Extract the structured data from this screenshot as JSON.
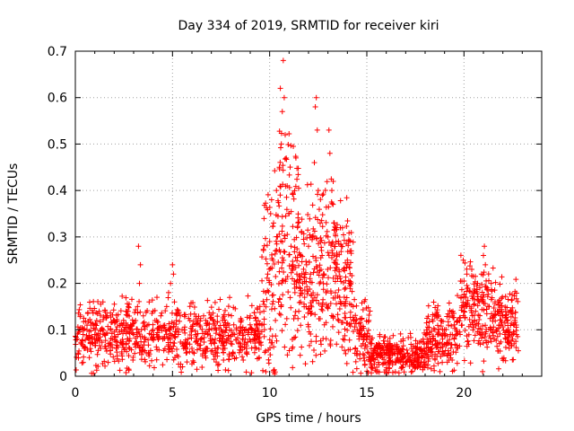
{
  "chart_data": {
    "type": "scatter",
    "title": "Day 334 of 2019, SRMTID for receiver kiri",
    "xlabel": "GPS time / hours",
    "ylabel": "SRMTID / TECUs",
    "xlim": [
      0,
      24
    ],
    "ylim": [
      0,
      0.7
    ],
    "x_ticks": [
      0,
      5,
      10,
      15,
      20
    ],
    "x_tick_labels": [
      "0",
      "5",
      "10",
      "15",
      "20"
    ],
    "y_ticks": [
      0,
      0.1,
      0.2,
      0.3,
      0.4,
      0.5,
      0.6,
      0.7
    ],
    "y_tick_labels": [
      "0",
      "0.1",
      "0.2",
      "0.3",
      "0.4",
      "0.5",
      "0.6",
      "0.7"
    ],
    "grid": true,
    "marker": "+",
    "color": "#ff0000",
    "series": [
      {
        "name": "SRMTID",
        "points": [
          [
            0.1,
            0.08
          ],
          [
            0.2,
            0.1
          ],
          [
            0.3,
            0.07
          ],
          [
            0.4,
            0.09
          ],
          [
            0.5,
            0.06
          ],
          [
            0.6,
            0.1
          ],
          [
            0.7,
            0.08
          ],
          [
            0.8,
            0.11
          ],
          [
            0.9,
            0.07
          ],
          [
            1.0,
            0.09
          ],
          [
            1.1,
            0.12
          ],
          [
            1.2,
            0.08
          ],
          [
            1.3,
            0.06
          ],
          [
            1.4,
            0.1
          ],
          [
            1.5,
            0.09
          ],
          [
            1.6,
            0.13
          ],
          [
            1.7,
            0.07
          ],
          [
            1.8,
            0.1
          ],
          [
            1.9,
            0.08
          ],
          [
            2.0,
            0.12
          ],
          [
            2.1,
            0.06
          ],
          [
            2.2,
            0.09
          ],
          [
            2.3,
            0.11
          ],
          [
            2.4,
            0.07
          ],
          [
            2.5,
            0.1
          ],
          [
            2.6,
            0.14
          ],
          [
            2.7,
            0.08
          ],
          [
            2.8,
            0.06
          ],
          [
            2.9,
            0.1
          ],
          [
            3.0,
            0.09
          ],
          [
            3.1,
            0.12
          ],
          [
            3.2,
            0.15
          ],
          [
            3.25,
            0.28
          ],
          [
            3.3,
            0.2
          ],
          [
            3.35,
            0.24
          ],
          [
            3.4,
            0.1
          ],
          [
            3.5,
            0.13
          ],
          [
            3.6,
            0.08
          ],
          [
            3.7,
            0.11
          ],
          [
            3.8,
            0.16
          ],
          [
            3.9,
            0.09
          ],
          [
            4.0,
            0.14
          ],
          [
            4.1,
            0.12
          ],
          [
            4.2,
            0.17
          ],
          [
            4.3,
            0.1
          ],
          [
            4.4,
            0.13
          ],
          [
            4.5,
            0.08
          ],
          [
            4.6,
            0.11
          ],
          [
            4.7,
            0.15
          ],
          [
            4.8,
            0.18
          ],
          [
            4.9,
            0.2
          ],
          [
            5.0,
            0.24
          ],
          [
            5.05,
            0.22
          ],
          [
            5.1,
            0.16
          ],
          [
            5.2,
            0.12
          ],
          [
            5.3,
            0.09
          ],
          [
            5.4,
            0.13
          ],
          [
            5.5,
            0.07
          ],
          [
            5.6,
            0.1
          ],
          [
            5.7,
            0.05
          ],
          [
            5.8,
            0.08
          ],
          [
            5.9,
            0.12
          ],
          [
            6.0,
            0.06
          ],
          [
            6.1,
            0.03
          ],
          [
            6.2,
            0.09
          ],
          [
            6.3,
            0.07
          ],
          [
            6.4,
            0.11
          ],
          [
            6.5,
            0.08
          ],
          [
            6.6,
            0.13
          ],
          [
            6.7,
            0.06
          ],
          [
            6.8,
            0.09
          ],
          [
            6.9,
            0.1
          ],
          [
            7.0,
            0.07
          ],
          [
            7.1,
            0.12
          ],
          [
            7.2,
            0.08
          ],
          [
            7.3,
            0.05
          ],
          [
            7.4,
            0.09
          ],
          [
            7.5,
            0.1
          ],
          [
            7.6,
            0.07
          ],
          [
            7.7,
            0.06
          ],
          [
            7.8,
            0.08
          ],
          [
            7.9,
            0.11
          ],
          [
            8.0,
            0.07
          ],
          [
            8.1,
            0.05
          ],
          [
            8.2,
            0.09
          ],
          [
            8.3,
            0.1
          ],
          [
            8.4,
            0.07
          ],
          [
            8.5,
            0.12
          ],
          [
            8.6,
            0.08
          ],
          [
            8.7,
            0.1
          ],
          [
            8.8,
            0.06
          ],
          [
            8.9,
            0.09
          ],
          [
            9.0,
            0.13
          ],
          [
            9.1,
            0.1
          ],
          [
            9.2,
            0.08
          ],
          [
            9.3,
            0.12
          ],
          [
            9.4,
            0.1
          ],
          [
            9.5,
            0.15
          ],
          [
            9.6,
            0.11
          ],
          [
            9.7,
            0.14
          ],
          [
            9.8,
            0.18
          ],
          [
            9.9,
            0.22
          ],
          [
            10.0,
            0.29
          ],
          [
            10.05,
            0.35
          ],
          [
            10.1,
            0.38
          ],
          [
            10.2,
            0.33
          ],
          [
            10.3,
            0.27
          ],
          [
            10.35,
            0.4
          ],
          [
            10.4,
            0.3
          ],
          [
            10.5,
            0.45
          ],
          [
            10.55,
            0.62
          ],
          [
            10.6,
            0.5
          ],
          [
            10.65,
            0.57
          ],
          [
            10.7,
            0.68
          ],
          [
            10.75,
            0.6
          ],
          [
            10.8,
            0.52
          ],
          [
            10.85,
            0.47
          ],
          [
            10.9,
            0.41
          ],
          [
            11.0,
            0.35
          ],
          [
            11.1,
            0.28
          ],
          [
            11.2,
            0.24
          ],
          [
            11.3,
            0.18
          ],
          [
            11.4,
            0.22
          ],
          [
            11.5,
            0.14
          ],
          [
            11.6,
            0.26
          ],
          [
            11.7,
            0.2
          ],
          [
            11.8,
            0.17
          ],
          [
            11.9,
            0.24
          ],
          [
            12.0,
            0.28
          ],
          [
            12.1,
            0.22
          ],
          [
            12.2,
            0.3
          ],
          [
            12.3,
            0.46
          ],
          [
            12.35,
            0.58
          ],
          [
            12.4,
            0.6
          ],
          [
            12.45,
            0.53
          ],
          [
            12.5,
            0.4
          ],
          [
            12.6,
            0.33
          ],
          [
            12.7,
            0.26
          ],
          [
            12.8,
            0.22
          ],
          [
            12.9,
            0.18
          ],
          [
            13.0,
            0.3
          ],
          [
            13.05,
            0.53
          ],
          [
            13.1,
            0.48
          ],
          [
            13.2,
            0.4
          ],
          [
            13.3,
            0.33
          ],
          [
            13.4,
            0.25
          ],
          [
            13.5,
            0.21
          ],
          [
            13.6,
            0.17
          ],
          [
            13.7,
            0.28
          ],
          [
            13.8,
            0.23
          ],
          [
            13.9,
            0.19
          ],
          [
            14.0,
            0.25
          ],
          [
            14.1,
            0.2
          ],
          [
            14.2,
            0.27
          ],
          [
            14.3,
            0.15
          ],
          [
            14.4,
            0.12
          ],
          [
            14.5,
            0.1
          ],
          [
            14.6,
            0.08
          ],
          [
            14.7,
            0.09
          ],
          [
            14.8,
            0.07
          ],
          [
            14.9,
            0.06
          ],
          [
            15.0,
            0.08
          ],
          [
            15.1,
            0.05
          ],
          [
            15.2,
            0.07
          ],
          [
            15.3,
            0.04
          ],
          [
            15.4,
            0.06
          ],
          [
            15.5,
            0.05
          ],
          [
            15.6,
            0.03
          ],
          [
            15.7,
            0.06
          ],
          [
            15.8,
            0.04
          ],
          [
            15.9,
            0.07
          ],
          [
            16.0,
            0.05
          ],
          [
            16.1,
            0.03
          ],
          [
            16.2,
            0.04
          ],
          [
            16.3,
            0.06
          ],
          [
            16.4,
            0.05
          ],
          [
            16.5,
            0.03
          ],
          [
            16.6,
            0.04
          ],
          [
            16.7,
            0.05
          ],
          [
            16.8,
            0.02
          ],
          [
            16.9,
            0.04
          ],
          [
            17.0,
            0.03
          ],
          [
            17.1,
            0.05
          ],
          [
            17.2,
            0.04
          ],
          [
            17.3,
            0.06
          ],
          [
            17.4,
            0.03
          ],
          [
            17.5,
            0.05
          ],
          [
            17.6,
            0.07
          ],
          [
            17.7,
            0.04
          ],
          [
            17.8,
            0.06
          ],
          [
            17.9,
            0.08
          ],
          [
            18.0,
            0.05
          ],
          [
            18.1,
            0.07
          ],
          [
            18.2,
            0.09
          ],
          [
            18.3,
            0.06
          ],
          [
            18.4,
            0.08
          ],
          [
            18.5,
            0.1
          ],
          [
            18.6,
            0.07
          ],
          [
            18.7,
            0.09
          ],
          [
            18.8,
            0.12
          ],
          [
            18.9,
            0.08
          ],
          [
            19.0,
            0.1
          ],
          [
            19.1,
            0.07
          ],
          [
            19.2,
            0.11
          ],
          [
            19.3,
            0.09
          ],
          [
            19.4,
            0.13
          ],
          [
            19.5,
            0.08
          ],
          [
            19.6,
            0.1
          ],
          [
            19.7,
            0.12
          ],
          [
            19.8,
            0.09
          ],
          [
            19.9,
            0.11
          ],
          [
            20.0,
            0.14
          ],
          [
            20.1,
            0.17
          ],
          [
            20.15,
            0.22
          ],
          [
            20.2,
            0.19
          ],
          [
            20.3,
            0.15
          ],
          [
            20.4,
            0.23
          ],
          [
            20.5,
            0.18
          ],
          [
            20.6,
            0.14
          ],
          [
            20.7,
            0.2
          ],
          [
            20.8,
            0.16
          ],
          [
            20.9,
            0.22
          ],
          [
            21.0,
            0.26
          ],
          [
            21.05,
            0.28
          ],
          [
            21.1,
            0.24
          ],
          [
            21.2,
            0.19
          ],
          [
            21.3,
            0.15
          ],
          [
            21.4,
            0.2
          ],
          [
            21.5,
            0.13
          ],
          [
            21.6,
            0.16
          ],
          [
            21.7,
            0.1
          ],
          [
            21.8,
            0.14
          ],
          [
            21.9,
            0.11
          ],
          [
            22.0,
            0.13
          ],
          [
            22.1,
            0.09
          ],
          [
            22.2,
            0.12
          ],
          [
            22.3,
            0.1
          ],
          [
            22.4,
            0.14
          ],
          [
            22.5,
            0.08
          ],
          [
            22.6,
            0.11
          ],
          [
            22.7,
            0.09
          ]
        ]
      }
    ],
    "background_density": [
      {
        "range": [
          0.0,
          9.6
        ],
        "base": 0.085,
        "spread": 0.035,
        "count": 700
      },
      {
        "range": [
          9.6,
          10.3
        ],
        "base": 0.2,
        "spread": 0.12,
        "count": 70
      },
      {
        "range": [
          10.3,
          11.5
        ],
        "base": 0.28,
        "spread": 0.12,
        "count": 140
      },
      {
        "range": [
          11.5,
          14.3
        ],
        "base": 0.22,
        "spread": 0.09,
        "count": 320
      },
      {
        "range": [
          14.3,
          15.2
        ],
        "base": 0.09,
        "spread": 0.04,
        "count": 80
      },
      {
        "range": [
          15.2,
          18.0
        ],
        "base": 0.045,
        "spread": 0.02,
        "count": 260
      },
      {
        "range": [
          18.0,
          19.8
        ],
        "base": 0.085,
        "spread": 0.035,
        "count": 160
      },
      {
        "range": [
          19.8,
          21.5
        ],
        "base": 0.14,
        "spread": 0.05,
        "count": 160
      },
      {
        "range": [
          21.5,
          22.8
        ],
        "base": 0.11,
        "spread": 0.04,
        "count": 130
      }
    ]
  }
}
